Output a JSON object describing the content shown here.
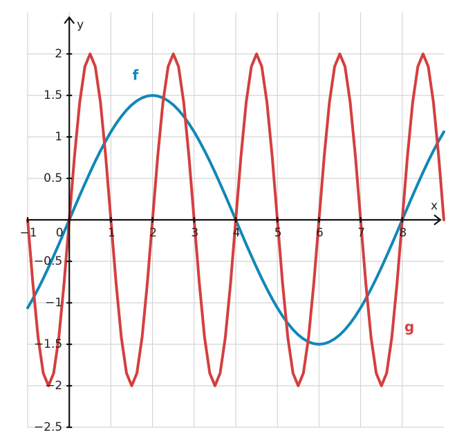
{
  "chart_data": {
    "type": "line",
    "x_label": "x",
    "y_label": "y",
    "x": [
      -1,
      -0.875,
      -0.75,
      -0.625,
      -0.5,
      -0.375,
      -0.25,
      -0.125,
      0,
      0.125,
      0.25,
      0.375,
      0.5,
      0.625,
      0.75,
      0.875,
      1,
      1.125,
      1.25,
      1.375,
      1.5,
      1.625,
      1.75,
      1.875,
      2,
      2.125,
      2.25,
      2.375,
      2.5,
      2.625,
      2.75,
      2.875,
      3,
      3.125,
      3.25,
      3.375,
      3.5,
      3.625,
      3.75,
      3.875,
      4,
      4.125,
      4.25,
      4.375,
      4.5,
      4.625,
      4.75,
      4.875,
      5,
      5.125,
      5.25,
      5.375,
      5.5,
      5.625,
      5.75,
      5.875,
      6,
      6.125,
      6.25,
      6.375,
      6.5,
      6.625,
      6.75,
      6.875,
      7,
      7.125,
      7.25,
      7.375,
      7.5,
      7.625,
      7.75,
      7.875,
      8,
      8.125,
      8.25,
      8.375,
      8.5,
      8.625,
      8.75,
      8.875,
      9
    ],
    "series": [
      {
        "name": "f",
        "color": "#1187b8",
        "values": [
          -1.061,
          -0.952,
          -0.833,
          -0.707,
          -0.574,
          -0.435,
          -0.293,
          -0.147,
          0,
          0.147,
          0.293,
          0.435,
          0.574,
          0.707,
          0.833,
          0.952,
          1.061,
          1.16,
          1.247,
          1.323,
          1.386,
          1.435,
          1.471,
          1.493,
          1.5,
          1.493,
          1.471,
          1.435,
          1.386,
          1.323,
          1.247,
          1.16,
          1.061,
          0.952,
          0.833,
          0.707,
          0.574,
          0.435,
          0.293,
          0.147,
          0,
          -0.147,
          -0.293,
          -0.435,
          -0.574,
          -0.707,
          -0.833,
          -0.952,
          -1.061,
          -1.16,
          -1.247,
          -1.323,
          -1.386,
          -1.435,
          -1.471,
          -1.493,
          -1.5,
          -1.493,
          -1.471,
          -1.435,
          -1.386,
          -1.323,
          -1.247,
          -1.16,
          -1.061,
          -0.952,
          -0.833,
          -0.707,
          -0.574,
          -0.435,
          -0.293,
          -0.147,
          0,
          0.147,
          0.293,
          0.435,
          0.574,
          0.707,
          0.833,
          0.952,
          1.061
        ]
      },
      {
        "name": "g",
        "color": "#d43f3f",
        "values": [
          0,
          -0.765,
          -1.414,
          -1.848,
          -2,
          -1.848,
          -1.414,
          -0.765,
          0,
          0.765,
          1.414,
          1.848,
          2,
          1.848,
          1.414,
          0.765,
          0,
          -0.765,
          -1.414,
          -1.848,
          -2,
          -1.848,
          -1.414,
          -0.765,
          0,
          0.765,
          1.414,
          1.848,
          2,
          1.848,
          1.414,
          0.765,
          0,
          -0.765,
          -1.414,
          -1.848,
          -2,
          -1.848,
          -1.414,
          -0.765,
          0,
          0.765,
          1.414,
          1.848,
          2,
          1.848,
          1.414,
          0.765,
          0,
          -0.765,
          -1.414,
          -1.848,
          -2,
          -1.848,
          -1.414,
          -0.765,
          0,
          0.765,
          1.414,
          1.848,
          2,
          1.848,
          1.414,
          0.765,
          0,
          -0.765,
          -1.414,
          -1.848,
          -2,
          -1.848,
          -1.414,
          -0.765,
          0,
          0.765,
          1.414,
          1.848,
          2,
          1.848,
          1.414,
          0.765,
          0
        ]
      }
    ],
    "xlim": [
      -1,
      9
    ],
    "ylim": [
      -2.5,
      2.5
    ],
    "xticks": [
      {
        "value": -1,
        "label": "−1"
      },
      0,
      1,
      2,
      3,
      4,
      5,
      6,
      7,
      8
    ],
    "yticks": [
      {
        "value": -2.5,
        "label": "−2.5"
      },
      {
        "value": -2,
        "label": "−2"
      },
      {
        "value": -1.5,
        "label": "−1.5"
      },
      {
        "value": -1,
        "label": "−1"
      },
      {
        "value": -0.5,
        "label": "−0.5"
      },
      0.5,
      1,
      1.5,
      2
    ],
    "grid": true
  }
}
